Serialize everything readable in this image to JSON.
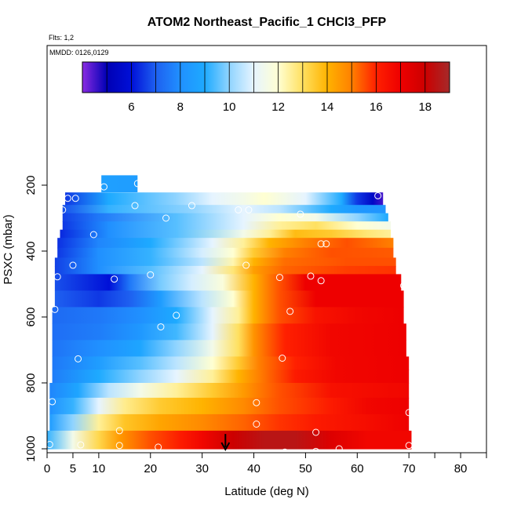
{
  "chart_data": {
    "type": "heatmap",
    "title": "ATOM2 Northeast_Pacific_1 CHCl3_PFP",
    "subtitle_flights": "Flts: 1,2",
    "subtitle_dates": "MMDD: 0126,0129",
    "xlabel": "Latitude (deg N)",
    "ylabel": "PSXC (mbar)",
    "xlim": [
      0,
      85
    ],
    "ylim": [
      1000,
      0
    ],
    "x_ticks": [
      0,
      5,
      10,
      20,
      30,
      40,
      50,
      60,
      70,
      80
    ],
    "x_minor_ticks": [
      75,
      85
    ],
    "y_ticks": [
      200,
      400,
      600,
      800,
      1000
    ],
    "colorbar": {
      "range": [
        4,
        19
      ],
      "ticks": [
        6,
        8,
        10,
        12,
        14,
        16,
        18
      ],
      "position": "top",
      "stops": [
        [
          4.0,
          "#8a2be2"
        ],
        [
          5.0,
          "#0000b4"
        ],
        [
          6.0,
          "#0010d8"
        ],
        [
          7.0,
          "#1e60f0"
        ],
        [
          8.0,
          "#2090ff"
        ],
        [
          9.0,
          "#1eaaff"
        ],
        [
          10.0,
          "#90d4ff"
        ],
        [
          11.0,
          "#e6f4ff"
        ],
        [
          12.0,
          "#ffffd2"
        ],
        [
          13.0,
          "#ffe060"
        ],
        [
          14.0,
          "#ffb300"
        ],
        [
          15.0,
          "#ff8000"
        ],
        [
          16.0,
          "#ff2000"
        ],
        [
          17.0,
          "#ee0000"
        ],
        [
          18.0,
          "#cc0000"
        ],
        [
          19.0,
          "#a52a2a"
        ]
      ]
    },
    "rows": [
      {
        "p": [
          170,
          220
        ],
        "lat": [
          10.5,
          17.5
        ],
        "v": [
          [
            10.5,
            8.6
          ],
          [
            17.5,
            8.5
          ]
        ]
      },
      {
        "p": [
          222,
          260
        ],
        "lat": [
          3.5,
          65
        ],
        "v": [
          [
            3.5,
            6.5
          ],
          [
            12,
            9
          ],
          [
            25,
            10
          ],
          [
            32,
            11
          ],
          [
            38,
            11.5
          ],
          [
            42,
            12
          ],
          [
            50,
            11
          ],
          [
            57,
            9
          ],
          [
            60,
            6.5
          ],
          [
            63,
            5.5
          ],
          [
            65,
            4.5
          ]
        ]
      },
      {
        "p": [
          260,
          285
        ],
        "lat": [
          3,
          65.5
        ],
        "v": [
          [
            3,
            6.8
          ],
          [
            12,
            9.2
          ],
          [
            28,
            10
          ],
          [
            38,
            11
          ],
          [
            45,
            10.5
          ],
          [
            55,
            9
          ],
          [
            60,
            8.3
          ],
          [
            65.5,
            8.2
          ]
        ]
      },
      {
        "p": [
          285,
          310
        ],
        "lat": [
          3,
          66
        ],
        "v": [
          [
            3,
            6.6
          ],
          [
            10,
            7.5
          ],
          [
            25,
            9.5
          ],
          [
            38,
            11
          ],
          [
            45,
            12
          ],
          [
            52,
            11.5
          ],
          [
            60,
            10
          ],
          [
            66,
            9
          ]
        ]
      },
      {
        "p": [
          310,
          335
        ],
        "lat": [
          3,
          66.5
        ],
        "v": [
          [
            3,
            6.5
          ],
          [
            12,
            8
          ],
          [
            25,
            9.5
          ],
          [
            38,
            11
          ],
          [
            45,
            12.5
          ],
          [
            52,
            13
          ],
          [
            60,
            12
          ],
          [
            66.5,
            11.5
          ]
        ]
      },
      {
        "p": [
          335,
          360
        ],
        "lat": [
          2.5,
          66.5
        ],
        "v": [
          [
            2.5,
            6.3
          ],
          [
            12,
            8
          ],
          [
            25,
            9.5
          ],
          [
            38,
            11.5
          ],
          [
            43,
            12.5
          ],
          [
            48,
            13.8
          ],
          [
            55,
            13.5
          ],
          [
            62,
            12.8
          ],
          [
            66.5,
            12.5
          ]
        ]
      },
      {
        "p": [
          360,
          390
        ],
        "lat": [
          2,
          67
        ],
        "v": [
          [
            2,
            6.4
          ],
          [
            10,
            7.8
          ],
          [
            20,
            9
          ],
          [
            32,
            11
          ],
          [
            38,
            12.5
          ],
          [
            43,
            14
          ],
          [
            50,
            15
          ],
          [
            58,
            15.5
          ],
          [
            67,
            15
          ]
        ]
      },
      {
        "p": [
          390,
          420
        ],
        "lat": [
          2,
          67
        ],
        "v": [
          [
            2,
            6.5
          ],
          [
            10,
            8
          ],
          [
            20,
            9.2
          ],
          [
            30,
            10.8
          ],
          [
            36,
            12
          ],
          [
            40,
            13.5
          ],
          [
            46,
            15
          ],
          [
            55,
            15.5
          ],
          [
            67,
            15.4
          ]
        ]
      },
      {
        "p": [
          420,
          445
        ],
        "lat": [
          1.5,
          67.5
        ],
        "v": [
          [
            1.5,
            6.6
          ],
          [
            10,
            8
          ],
          [
            20,
            9.2
          ],
          [
            30,
            10.5
          ],
          [
            36,
            12.3
          ],
          [
            40,
            14
          ],
          [
            46,
            15.2
          ],
          [
            58,
            15.5
          ],
          [
            67.5,
            15.5
          ]
        ]
      },
      {
        "p": [
          445,
          470
        ],
        "lat": [
          1.5,
          67.5
        ],
        "v": [
          [
            1.5,
            6.6
          ],
          [
            10,
            8
          ],
          [
            20,
            9.5
          ],
          [
            30,
            11
          ],
          [
            36,
            12.8
          ],
          [
            40,
            14.4
          ],
          [
            46,
            15.3
          ],
          [
            58,
            15.7
          ],
          [
            67.5,
            15.8
          ]
        ]
      },
      {
        "p": [
          470,
          520
        ],
        "lat": [
          1.5,
          68.5
        ],
        "v": [
          [
            1.5,
            6.8
          ],
          [
            12,
            6
          ],
          [
            16,
            7.5
          ],
          [
            22,
            9.8
          ],
          [
            28,
            10.8
          ],
          [
            34,
            11.8
          ],
          [
            40,
            14
          ],
          [
            45,
            15.5
          ],
          [
            50,
            17
          ],
          [
            58,
            17
          ],
          [
            68.5,
            17
          ]
        ]
      },
      {
        "p": [
          520,
          570
        ],
        "lat": [
          1.5,
          69
        ],
        "v": [
          [
            1.5,
            7
          ],
          [
            10,
            6.5
          ],
          [
            16,
            7
          ],
          [
            22,
            8.5
          ],
          [
            30,
            10.5
          ],
          [
            36,
            12
          ],
          [
            40,
            14
          ],
          [
            45,
            15.5
          ],
          [
            52,
            17
          ],
          [
            60,
            17
          ],
          [
            69,
            17
          ]
        ]
      },
      {
        "p": [
          570,
          620
        ],
        "lat": [
          1,
          69
        ],
        "v": [
          [
            1,
            7.2
          ],
          [
            10,
            7.5
          ],
          [
            18,
            8
          ],
          [
            25,
            9
          ],
          [
            32,
            11
          ],
          [
            37,
            12.5
          ],
          [
            40,
            14
          ],
          [
            45,
            15.5
          ],
          [
            52,
            16.4
          ],
          [
            60,
            16.8
          ],
          [
            69,
            17
          ]
        ]
      },
      {
        "p": [
          620,
          670
        ],
        "lat": [
          1,
          69.5
        ],
        "v": [
          [
            1,
            7.3
          ],
          [
            10,
            7.6
          ],
          [
            18,
            8.3
          ],
          [
            25,
            9.3
          ],
          [
            32,
            11
          ],
          [
            37,
            13
          ],
          [
            40,
            14.6
          ],
          [
            46,
            16
          ],
          [
            55,
            16.8
          ],
          [
            69.5,
            17
          ]
        ]
      },
      {
        "p": [
          670,
          720
        ],
        "lat": [
          1,
          69.5
        ],
        "v": [
          [
            1,
            7.4
          ],
          [
            10,
            8
          ],
          [
            18,
            8.8
          ],
          [
            25,
            10
          ],
          [
            32,
            11.5
          ],
          [
            37,
            13
          ],
          [
            40,
            14.6
          ],
          [
            46,
            16
          ],
          [
            55,
            16.8
          ],
          [
            69.5,
            17
          ]
        ]
      },
      {
        "p": [
          720,
          760
        ],
        "lat": [
          1,
          70
        ],
        "v": [
          [
            1,
            7.5
          ],
          [
            10,
            8.5
          ],
          [
            18,
            9.5
          ],
          [
            25,
            10.5
          ],
          [
            32,
            12
          ],
          [
            37,
            13.5
          ],
          [
            41,
            15
          ],
          [
            48,
            16
          ],
          [
            56,
            16.8
          ],
          [
            70,
            17
          ]
        ]
      },
      {
        "p": [
          760,
          800
        ],
        "lat": [
          1,
          70
        ],
        "v": [
          [
            1,
            7.6
          ],
          [
            10,
            9
          ],
          [
            18,
            10
          ],
          [
            25,
            11
          ],
          [
            32,
            12.5
          ],
          [
            37,
            14
          ],
          [
            41,
            15
          ],
          [
            48,
            16.2
          ],
          [
            56,
            16.8
          ],
          [
            70,
            17
          ]
        ]
      },
      {
        "p": [
          800,
          845
        ],
        "lat": [
          0.5,
          70
        ],
        "v": [
          [
            0.5,
            7.8
          ],
          [
            6,
            8.8
          ],
          [
            12,
            10.5
          ],
          [
            18,
            11.5
          ],
          [
            25,
            12.5
          ],
          [
            32,
            13.5
          ],
          [
            38,
            14.5
          ],
          [
            45,
            15.5
          ],
          [
            55,
            16.5
          ],
          [
            70,
            16.8
          ]
        ]
      },
      {
        "p": [
          845,
          895
        ],
        "lat": [
          0.5,
          70
        ],
        "v": [
          [
            0.5,
            8
          ],
          [
            5,
            9.2
          ],
          [
            10,
            11
          ],
          [
            15,
            12.6
          ],
          [
            22,
            13.5
          ],
          [
            30,
            14
          ],
          [
            38,
            14.8
          ],
          [
            45,
            15.5
          ],
          [
            55,
            16.2
          ],
          [
            62,
            16.8
          ],
          [
            70,
            17
          ]
        ]
      },
      {
        "p": [
          895,
          945
        ],
        "lat": [
          0.5,
          70
        ],
        "v": [
          [
            0.5,
            8.5
          ],
          [
            5,
            10
          ],
          [
            10,
            12.5
          ],
          [
            15,
            13.6
          ],
          [
            22,
            14.3
          ],
          [
            30,
            14.8
          ],
          [
            38,
            15.3
          ],
          [
            45,
            15.8
          ],
          [
            52,
            16.2
          ],
          [
            62,
            16.6
          ],
          [
            70,
            17
          ]
        ]
      },
      {
        "p": [
          945,
          1000
        ],
        "lat": [
          0,
          70.5
        ],
        "v": [
          [
            0,
            9.2
          ],
          [
            5,
            11.5
          ],
          [
            10,
            13.2
          ],
          [
            14,
            14.5
          ],
          [
            20,
            15.5
          ],
          [
            26,
            16.2
          ],
          [
            30,
            16.8
          ],
          [
            36,
            18
          ],
          [
            42,
            18.5
          ],
          [
            48,
            18.5
          ],
          [
            55,
            17.5
          ],
          [
            62,
            16.8
          ],
          [
            70.5,
            16.8
          ]
        ]
      }
    ],
    "samples": [
      [
        11,
        205
      ],
      [
        17.5,
        195
      ],
      [
        4,
        240
      ],
      [
        5.5,
        240
      ],
      [
        64,
        232
      ],
      [
        3,
        275
      ],
      [
        17,
        262
      ],
      [
        28,
        262
      ],
      [
        23,
        300
      ],
      [
        37,
        275
      ],
      [
        39,
        275
      ],
      [
        49,
        288
      ],
      [
        9,
        350
      ],
      [
        53,
        378
      ],
      [
        54,
        378
      ],
      [
        5,
        443
      ],
      [
        38.5,
        443
      ],
      [
        2,
        478
      ],
      [
        13,
        485
      ],
      [
        20,
        472
      ],
      [
        45,
        480
      ],
      [
        51,
        476
      ],
      [
        53,
        490
      ],
      [
        69,
        505
      ],
      [
        1.5,
        577
      ],
      [
        25,
        595
      ],
      [
        22,
        630
      ],
      [
        47,
        583
      ],
      [
        6,
        727
      ],
      [
        45.5,
        725
      ],
      [
        1,
        857
      ],
      [
        40.5,
        860
      ],
      [
        70,
        890
      ],
      [
        40.5,
        925
      ],
      [
        14,
        945
      ],
      [
        52,
        950
      ],
      [
        0.5,
        987
      ],
      [
        6.5,
        988
      ],
      [
        14,
        990
      ],
      [
        21.5,
        995
      ],
      [
        46,
        1010
      ],
      [
        52,
        1008
      ],
      [
        56.5,
        1000
      ],
      [
        70,
        990
      ]
    ],
    "arrow_marker": {
      "lat": 34.5,
      "p": [
        955,
        1000
      ]
    }
  }
}
